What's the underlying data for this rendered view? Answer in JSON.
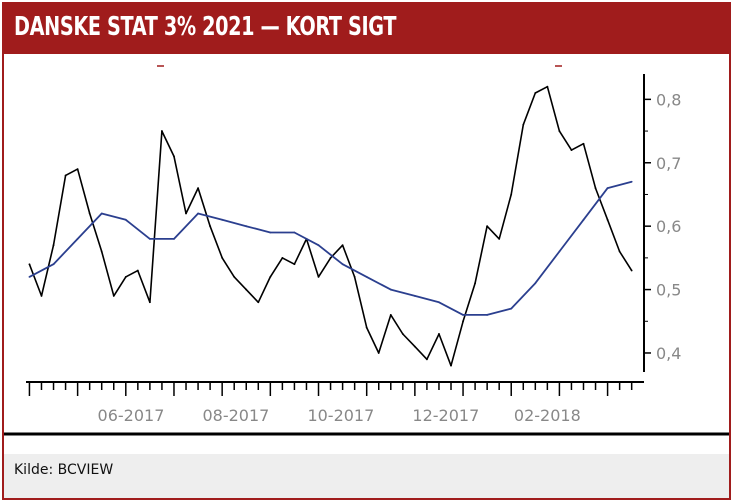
{
  "header": {
    "title": "DANSKE STAT 3% 2021 — KORT SIGT"
  },
  "footer": {
    "source": "Kilde: BCVIEW"
  },
  "colors": {
    "brand": "#a01c1c",
    "price_line": "#000000",
    "moving_average": "#2b3f8f",
    "tick_text": "#888888"
  },
  "chart_data": {
    "type": "line",
    "title": "DANSKE STAT 3% 2021 — KORT SIGT",
    "xlabel": "",
    "ylabel": "",
    "ylim": [
      0.37,
      0.84
    ],
    "y_ticks": [
      0.4,
      0.5,
      0.6,
      0.7,
      0.8
    ],
    "y_tick_labels": [
      "0,4",
      "0,5",
      "0,6",
      "0,7",
      "0,8"
    ],
    "x_tick_labels": [
      "06-2017",
      "08-2017",
      "10-2017",
      "12-2017",
      "02-2018"
    ],
    "y_axis_side": "right",
    "grid": false,
    "series": [
      {
        "style": "price",
        "x": [
          "2017-04-17",
          "2017-04-24",
          "2017-05-01",
          "2017-05-08",
          "2017-05-15",
          "2017-05-22",
          "2017-05-29",
          "2017-06-05",
          "2017-06-12",
          "2017-06-19",
          "2017-06-26",
          "2017-07-03",
          "2017-07-10",
          "2017-07-17",
          "2017-07-24",
          "2017-07-31",
          "2017-08-07",
          "2017-08-14",
          "2017-08-21",
          "2017-08-28",
          "2017-09-04",
          "2017-09-11",
          "2017-09-18",
          "2017-09-25",
          "2017-10-02",
          "2017-10-09",
          "2017-10-16",
          "2017-10-23",
          "2017-10-30",
          "2017-11-06",
          "2017-11-13",
          "2017-11-20",
          "2017-11-27",
          "2017-12-04",
          "2017-12-11",
          "2017-12-18",
          "2017-12-25",
          "2018-01-01",
          "2018-01-08",
          "2018-01-15",
          "2018-01-22",
          "2018-01-29",
          "2018-02-05",
          "2018-02-12",
          "2018-02-19",
          "2018-02-26",
          "2018-03-05",
          "2018-03-12",
          "2018-03-19",
          "2018-03-26",
          "2018-04-02"
        ],
        "values": [
          0.54,
          0.49,
          0.57,
          0.68,
          0.69,
          0.62,
          0.56,
          0.49,
          0.52,
          0.53,
          0.48,
          0.75,
          0.71,
          0.62,
          0.66,
          0.6,
          0.55,
          0.52,
          0.5,
          0.48,
          0.52,
          0.55,
          0.54,
          0.58,
          0.52,
          0.55,
          0.57,
          0.52,
          0.44,
          0.4,
          0.46,
          0.43,
          0.41,
          0.39,
          0.43,
          0.38,
          0.45,
          0.51,
          0.6,
          0.58,
          0.65,
          0.76,
          0.81,
          0.82,
          0.75,
          0.72,
          0.73,
          0.66,
          0.61,
          0.56,
          0.53
        ]
      },
      {
        "style": "moving-average",
        "x": [
          "2017-04-17",
          "2017-05-01",
          "2017-05-15",
          "2017-05-29",
          "2017-06-12",
          "2017-06-26",
          "2017-07-10",
          "2017-07-24",
          "2017-08-07",
          "2017-08-21",
          "2017-09-04",
          "2017-09-18",
          "2017-10-02",
          "2017-10-16",
          "2017-10-30",
          "2017-11-13",
          "2017-11-27",
          "2017-12-11",
          "2017-12-25",
          "2018-01-08",
          "2018-01-22",
          "2018-02-05",
          "2018-02-19",
          "2018-03-05",
          "2018-03-19",
          "2018-04-02"
        ],
        "values": [
          0.52,
          0.54,
          0.58,
          0.62,
          0.61,
          0.58,
          0.58,
          0.62,
          0.61,
          0.6,
          0.59,
          0.59,
          0.57,
          0.54,
          0.52,
          0.5,
          0.49,
          0.48,
          0.46,
          0.46,
          0.47,
          0.51,
          0.56,
          0.61,
          0.66,
          0.67
        ]
      }
    ]
  }
}
